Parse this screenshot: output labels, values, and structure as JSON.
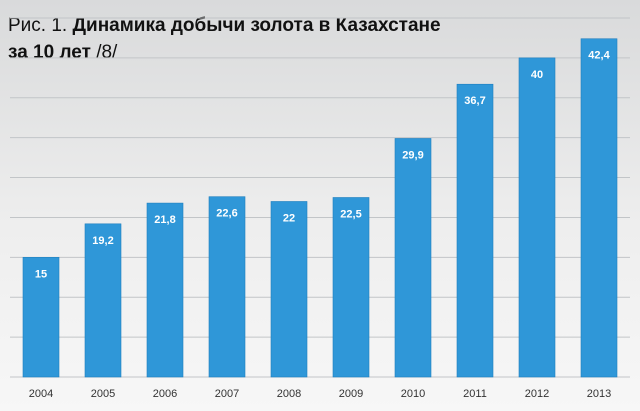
{
  "figure": {
    "prefix": "Рис. 1.",
    "title_line1": "Динамика добычи золота в Казахстане",
    "title_line2_bold": "за 10 лет",
    "title_line2_tail": "/8/"
  },
  "chart_data": {
    "type": "bar",
    "categories": [
      "2004",
      "2005",
      "2006",
      "2007",
      "2008",
      "2009",
      "2010",
      "2011",
      "2012",
      "2013"
    ],
    "values": [
      15,
      19.2,
      21.8,
      22.6,
      22,
      22.5,
      29.9,
      36.7,
      40,
      42.4
    ],
    "value_labels": [
      "15",
      "19,2",
      "21,8",
      "22,6",
      "22",
      "22,5",
      "29,9",
      "36,7",
      "40",
      "42,4"
    ],
    "ylim": [
      0,
      45
    ],
    "grid": true,
    "legend": "none",
    "colors": {
      "bar": "#2f97d8",
      "bar_edge": "#1f7fbf",
      "grid": "#c2c5c8",
      "label": "#ffffff",
      "tick": "#333333"
    }
  }
}
